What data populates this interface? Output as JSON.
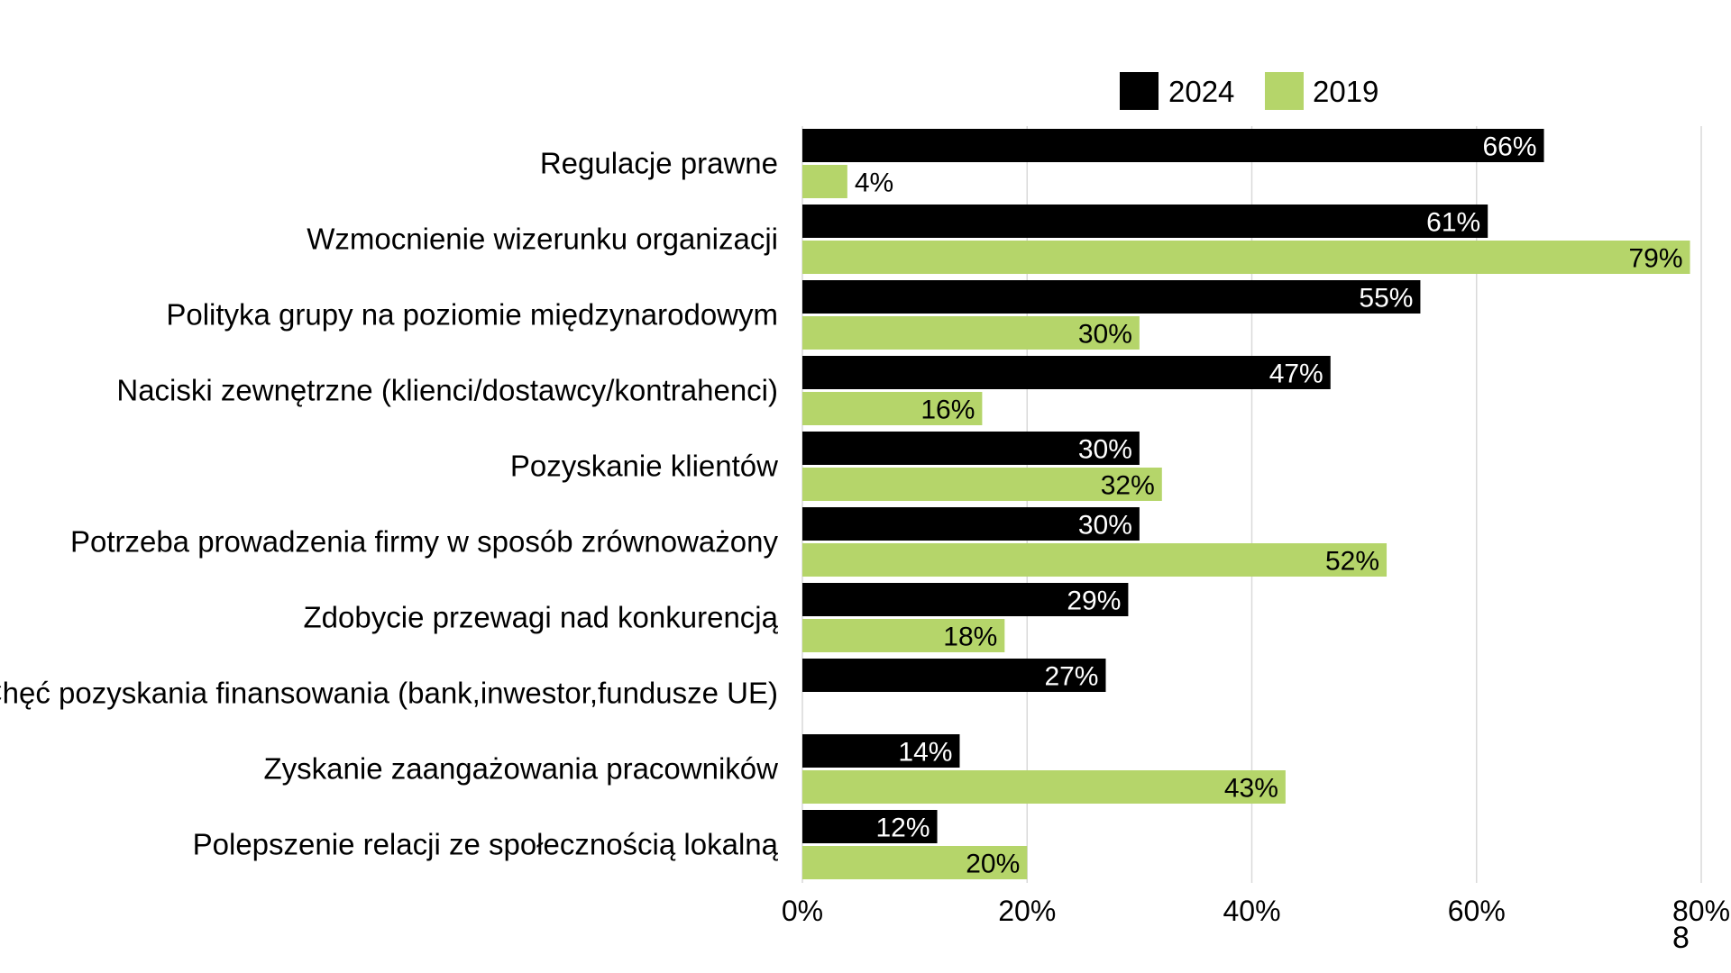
{
  "page_number": "8",
  "chart_data": {
    "type": "bar",
    "orientation": "horizontal",
    "categories": [
      "Regulacje prawne",
      "Wzmocnienie wizerunku organizacji",
      "Polityka grupy na poziomie międzynarodowym",
      "Naciski zewnętrzne (klienci/dostawcy/kontrahenci)",
      "Pozyskanie klientów",
      "Potrzeba prowadzenia firmy w sposób zrównoważony",
      "Zdobycie przewagi nad konkurencją",
      "Chęć pozyskania finansowania (bank,inwestor,fundusze UE)",
      "Zyskanie zaangażowania pracowników",
      "Polepszenie relacji ze społecznością lokalną"
    ],
    "series": [
      {
        "name": "2024",
        "color": "#000000",
        "label_color": "#ffffff",
        "values": [
          66,
          61,
          55,
          47,
          30,
          30,
          29,
          27,
          14,
          12
        ],
        "labels": [
          "66%",
          "61%",
          "55%",
          "47%",
          "30%",
          "30%",
          "29%",
          "27%",
          "14%",
          "12%"
        ]
      },
      {
        "name": "2019",
        "color": "#b5d56a",
        "label_color": "#000000",
        "values": [
          4,
          79,
          30,
          16,
          32,
          52,
          18,
          null,
          43,
          20
        ],
        "labels": [
          "4%",
          "79%",
          "30%",
          "16%",
          "32%",
          "52%",
          "18%",
          "",
          "43%",
          "20%"
        ]
      }
    ],
    "xlim": [
      0,
      80
    ],
    "xticks": [
      0,
      20,
      40,
      60,
      80
    ],
    "xtick_labels": [
      "0%",
      "20%",
      "40%",
      "60%",
      "80%"
    ],
    "grid": "vertical",
    "grid_color": "#d9d9d9",
    "legend_position": "top-right",
    "title": "",
    "xlabel": "",
    "ylabel": ""
  }
}
